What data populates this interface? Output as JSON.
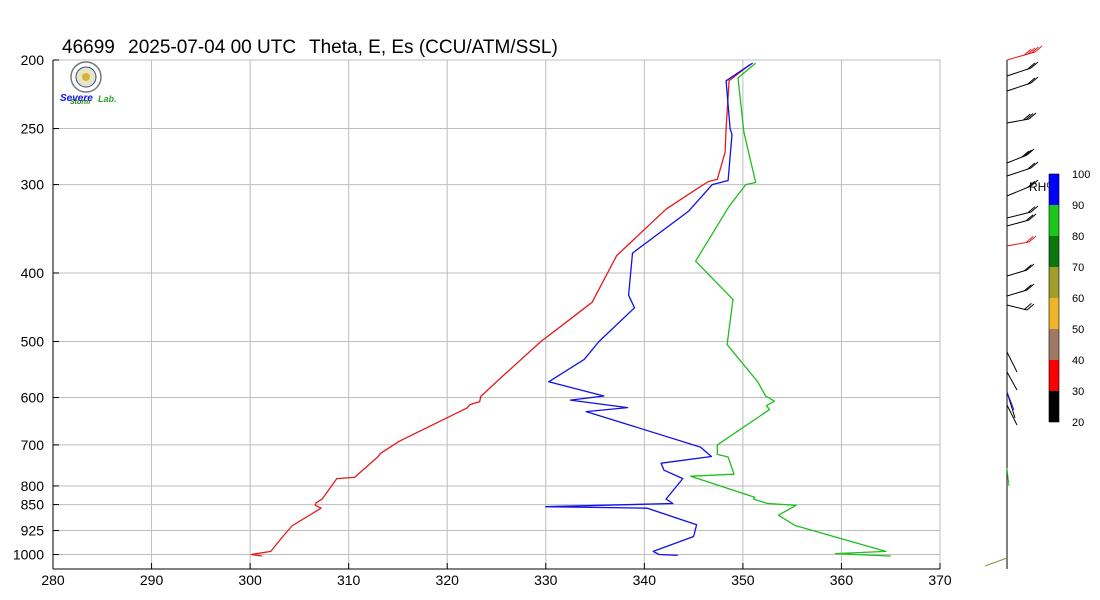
{
  "title": {
    "station": "46699",
    "datetime": "2025-07-04 00 UTC",
    "variables": "Theta, E, Es",
    "source": "(CCU/ATM/SSL)"
  },
  "logo": {
    "line1": "Severe",
    "line2": "Storm",
    "line3": "Lab."
  },
  "chart_data": {
    "type": "line",
    "x_axis": {
      "range": [
        280,
        370
      ],
      "ticks": [
        280,
        290,
        300,
        310,
        320,
        330,
        340,
        350,
        360,
        370
      ]
    },
    "y_axis": {
      "scale": "log-pressure",
      "range": [
        200,
        1000
      ],
      "inverted": true,
      "ticks": [
        200,
        250,
        300,
        400,
        500,
        600,
        700,
        800,
        850,
        925,
        1000
      ]
    },
    "grid": true,
    "series": [
      {
        "key": "theta",
        "color": "#e41a1c",
        "points": [
          [
            301.2,
            1005
          ],
          [
            300.1,
            1000
          ],
          [
            302.1,
            990
          ],
          [
            303.4,
            940
          ],
          [
            304.3,
            910
          ],
          [
            307.2,
            860
          ],
          [
            306.6,
            852
          ],
          [
            306.7,
            845
          ],
          [
            307.3,
            835
          ],
          [
            308.8,
            781
          ],
          [
            310.6,
            778
          ],
          [
            313.0,
            727
          ],
          [
            313.2,
            720
          ],
          [
            315.1,
            692
          ],
          [
            322.0,
            621
          ],
          [
            322.3,
            614
          ],
          [
            323.3,
            608
          ],
          [
            323.4,
            598
          ],
          [
            325.6,
            560
          ],
          [
            329.5,
            500
          ],
          [
            331.6,
            475
          ],
          [
            334.7,
            440
          ],
          [
            337.2,
            378
          ],
          [
            342.2,
            325
          ],
          [
            345.2,
            305
          ],
          [
            346.5,
            297
          ],
          [
            347.4,
            295
          ],
          [
            348.2,
            270
          ],
          [
            348.3,
            250
          ],
          [
            348.6,
            214
          ],
          [
            350.7,
            203
          ]
        ]
      },
      {
        "key": "E",
        "color": "#1010e8",
        "points": [
          [
            343.4,
            1003
          ],
          [
            341.5,
            1000
          ],
          [
            340.9,
            990
          ],
          [
            345.0,
            943
          ],
          [
            345.3,
            908
          ],
          [
            340.3,
            860
          ],
          [
            330.0,
            856
          ],
          [
            342.9,
            847
          ],
          [
            342.2,
            835
          ],
          [
            343.9,
            781
          ],
          [
            342.0,
            760
          ],
          [
            341.7,
            743
          ],
          [
            346.8,
            727
          ],
          [
            345.7,
            705
          ],
          [
            334.1,
            628
          ],
          [
            338.3,
            620
          ],
          [
            332.5,
            605
          ],
          [
            335.9,
            597
          ],
          [
            330.3,
            570
          ],
          [
            333.9,
            530
          ],
          [
            335.4,
            500
          ],
          [
            339.0,
            448
          ],
          [
            338.4,
            430
          ],
          [
            338.8,
            375
          ],
          [
            344.5,
            327
          ],
          [
            346.9,
            300
          ],
          [
            348.5,
            296
          ],
          [
            348.9,
            255
          ],
          [
            348.7,
            250
          ],
          [
            348.3,
            214
          ],
          [
            351.0,
            202
          ]
        ]
      },
      {
        "key": "Es",
        "color": "#1dbf1d",
        "points": [
          [
            365.0,
            1005
          ],
          [
            359.4,
            997
          ],
          [
            364.5,
            990
          ],
          [
            355.3,
            910
          ],
          [
            353.6,
            880
          ],
          [
            355.4,
            852
          ],
          [
            352.5,
            847
          ],
          [
            351.1,
            835
          ],
          [
            351.2,
            830
          ],
          [
            344.7,
            775
          ],
          [
            349.1,
            770
          ],
          [
            348.5,
            728
          ],
          [
            347.4,
            722
          ],
          [
            347.4,
            700
          ],
          [
            352.7,
            624
          ],
          [
            352.4,
            616
          ],
          [
            353.2,
            607
          ],
          [
            352.3,
            597
          ],
          [
            351.5,
            570
          ],
          [
            348.4,
            505
          ],
          [
            349.0,
            436
          ],
          [
            345.2,
            385
          ],
          [
            348.6,
            322
          ],
          [
            350.3,
            300
          ],
          [
            351.3,
            298
          ],
          [
            350.1,
            253
          ],
          [
            349.5,
            212
          ],
          [
            351.3,
            202
          ]
        ]
      }
    ],
    "colorbar": {
      "label": "RH%",
      "levels": [
        "100",
        "90",
        "80",
        "70",
        "60",
        "50",
        "40",
        "30",
        "20"
      ],
      "colors": [
        "#0000ff",
        "#19c819",
        "#0a780a",
        "#a0a028",
        "#f0b428",
        "#a07864",
        "#ff0000",
        "#000000"
      ]
    }
  }
}
